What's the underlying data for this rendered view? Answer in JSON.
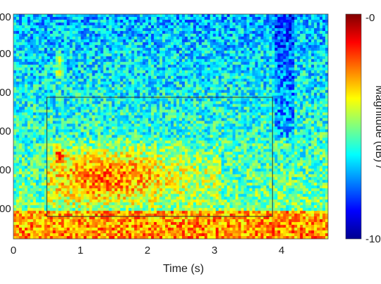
{
  "chart_data": {
    "type": "heatmap",
    "title": "",
    "xlabel": "Time (s)",
    "xlim": [
      0,
      4.7
    ],
    "x_ticks": [
      "0",
      "1",
      "2",
      "3",
      "4"
    ],
    "y_ticks": [
      "00",
      "00",
      "00",
      "00",
      "00",
      "00"
    ],
    "colorbar": {
      "label": "Magnitude (dB) /",
      "min_label": "-10",
      "max_label": "-0",
      "range": [
        -10,
        0
      ],
      "colormap": "jet"
    },
    "highlight_region": {
      "x_start": 0.5,
      "x_end": 3.87,
      "y_start_frac": 0.1,
      "y_end_frac": 0.63
    },
    "colors": {
      "low": "#00008f",
      "high": "#800000",
      "box": "#333333"
    }
  }
}
